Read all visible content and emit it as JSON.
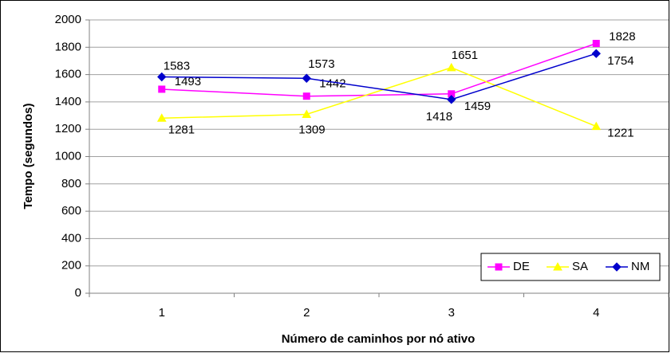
{
  "chart_data": {
    "type": "line",
    "x_label": "Número de caminhos por nó ativo",
    "y_label": "Tempo (segundos)",
    "categories": [
      "1",
      "2",
      "3",
      "4"
    ],
    "series": [
      {
        "name": "DE",
        "color": "#ff00ff",
        "marker": "square",
        "values": [
          1493,
          1442,
          1459,
          1828
        ]
      },
      {
        "name": "SA",
        "color": "#ffff00",
        "marker": "triangle",
        "values": [
          1281,
          1309,
          1651,
          1221
        ]
      },
      {
        "name": "NM",
        "color": "#0000cc",
        "marker": "diamond",
        "values": [
          1583,
          1573,
          1418,
          1754
        ]
      }
    ],
    "ylim": [
      0,
      2000
    ],
    "yticks": [
      0,
      200,
      400,
      600,
      800,
      1000,
      1200,
      1400,
      1600,
      1800,
      2000
    ],
    "grid": true,
    "legend": "lower right"
  }
}
